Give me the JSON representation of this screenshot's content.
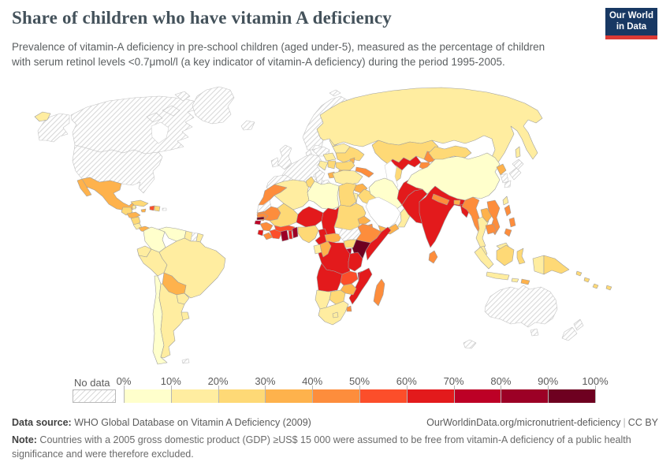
{
  "header": {
    "title": "Share of children who have vitamin A deficiency",
    "subtitle": "Prevalence of vitamin-A deficiency in pre-school children (aged under-5), measured as the percentage of children with serum retinol levels <0.7μmol/l (a key indicator of vitamin-A deficiency) during the period 1995-2005.",
    "logo_line1": "Our World",
    "logo_line2": "in Data",
    "logo_bg": "#183863",
    "logo_stripe": "#dc3a35"
  },
  "legend": {
    "no_data_label": "No data",
    "ticks": [
      "0%",
      "10%",
      "20%",
      "30%",
      "40%",
      "50%",
      "60%",
      "70%",
      "80%",
      "90%",
      "100%"
    ]
  },
  "footer": {
    "source_label": "Data source:",
    "source_text": " WHO Global Database on Vitamin A Deficiency (2009)",
    "link_text": "OurWorldinData.org/micronutrient-deficiency",
    "cc_text": "CC BY",
    "note_label": "Note:",
    "note_text": " Countries with a 2005 gross domestic product (GDP) ≥US$ 15 000 were assumed to be free from vitamin-A deficiency of a public health significance and were therefore excluded."
  },
  "chart_data": {
    "type": "choropleth",
    "title": "Share of children who have vitamin A deficiency",
    "unit": "% of children under 5 with serum retinol <0.7μmol/l",
    "period": "1995-2005",
    "legend_position": "bottom",
    "color_scale": {
      "bins": [
        "0-10%",
        "10-20%",
        "20-30%",
        "30-40%",
        "40-50%",
        "50-60%",
        "60-70%",
        "70-80%",
        "80-90%",
        "90-100%"
      ],
      "colors": [
        "#ffffcc",
        "#ffeda0",
        "#fed976",
        "#feb24c",
        "#fd8d3c",
        "#fc4e2a",
        "#e31a1c",
        "#bd0026",
        "#9c0026",
        "#6e0020"
      ],
      "no_data_fill": "hatched",
      "excluded_fill": "#ffffff"
    },
    "countries": {
      "Canada": "No data",
      "United States": "No data",
      "Greenland": "No data",
      "Arctic Islands": "No data",
      "Mexico": "30-40%",
      "Guatemala": "20-30%",
      "Belize": "10-20%",
      "Honduras": "30-40%",
      "Nicaragua": "20-30%",
      "Costa Rica": "10-20%",
      "Panama": "30-40%",
      "Cuba": "20-30%",
      "Jamaica": "30-40%",
      "Haiti": "50-60%",
      "Dominican Republic": "20-30%",
      "Puerto Rico": "No data",
      "Colombia": "0-10%",
      "Venezuela": "0-10%",
      "Guyana": "10-20%",
      "Suriname": "No data",
      "French Guiana": "10-20%",
      "Ecuador": "10-20%",
      "Peru": "10-20%",
      "Brazil": "10-20%",
      "Bolivia": "30-40%",
      "Paraguay": "10-20%",
      "Chile": "0-10%",
      "Argentina": "10-20%",
      "Uruguay": "10-20%",
      "Falkland Islands": "No data",
      "Iceland": "No data",
      "United Kingdom": "No data",
      "Ireland": "No data",
      "Scandinavia": "No data",
      "Denmark": "No data",
      "Western & Central Europe": "No data",
      "Iberia": "No data",
      "Italy": "No data",
      "Poland & Czechia": "No data",
      "Greece": "No data",
      "Croatia & Bosnia": "10-20%",
      "Baltic States": "10-20%",
      "Belarus": "10-20%",
      "Ukraine": "20-30%",
      "Moldova": "30-40%",
      "Romania": "20-30%",
      "Bulgaria": "30-40%",
      "Hungary & Slovakia": "10-20%",
      "Serbia": "20-30%",
      "Albania & Macedonia": "30-40%",
      "Svalbard": "No data",
      "Russia": "10-20%",
      "Kazakhstan": "20-30%",
      "Uzbekistan": "60-70%",
      "Turkmenistan": "20-30%",
      "Kyrgyzstan": "40-50%",
      "Tajikistan": "40-50%",
      "Caucasus": "40-50%",
      "Turkey": "10-20%",
      "Syria": "30-40%",
      "Iraq": "20-30%",
      "Jordan": "10-20%",
      "Iran": "0-10%",
      "Saudi Arabia": "Excluded",
      "Yemen": "30-40%",
      "Oman": "10-20%",
      "Afghanistan": "60-70%",
      "Pakistan": "60-70%",
      "India": "60-70%",
      "Nepal": "40-50%",
      "Bhutan": "30-40%",
      "Bangladesh": "60-70%",
      "Sri Lanka": "40-50%",
      "Myanmar": "40-50%",
      "Thailand": "10-20%",
      "Laos": "30-40%",
      "Vietnam": "40-50%",
      "Cambodia": "40-50%",
      "Malaysia": "10-20%",
      "China": "0-10%",
      "Mongolia": "20-30%",
      "North Korea": "30-40%",
      "South Korea": "No data",
      "Japan": "No data",
      "Taiwan": "10-20%",
      "Philippines": "40-50%",
      "Indonesia": "10-20%",
      "Indonesian Borneo": "20-30%",
      "Sulawesi": "20-30%",
      "Timor": "30-40%",
      "West Papua": "10-20%",
      "Papua New Guinea": "20-30%",
      "Solomon Islands": "20-30%",
      "Vanuatu": "20-30%",
      "Fiji": "20-30%",
      "Australia": "No data",
      "New Zealand": "No data",
      "Kerguelen": "No data",
      "Morocco": "40-50%",
      "Western Sahara": "No data",
      "Algeria": "10-20%",
      "Tunisia": "20-30%",
      "Libya": "0-10%",
      "Egypt": "20-30%",
      "Mauritania": "40-50%",
      "Mali": "20-30%",
      "Niger": "60-70%",
      "Chad": "60-70%",
      "Sudan": "20-30%",
      "Eritrea": "30-40%",
      "Djibouti": "40-50%",
      "Senegal": "40-50%",
      "Gambia": "90-100%",
      "Guinea-Bissau": "70-80%",
      "Guinea": "40-50%",
      "Sierra Leone": "60-70%",
      "Liberia": "40-50%",
      "Cote d'Ivoire": "50-60%",
      "Ghana": "80-90%",
      "Togo": "60-70%",
      "Benin": "80-90%",
      "Burkina Faso": "50-60%",
      "Nigeria": "20-30%",
      "Cameroon": "60-70%",
      "Central African Republic": "30-40%",
      "South Sudan": "No data",
      "Ethiopia": "40-50%",
      "Somalia": "60-70%",
      "Kenya": "90-100%",
      "Uganda": "20-30%",
      "Rwanda & Burundi": "70-80%",
      "DR Congo": "60-70%",
      "Gabon": "10-20%",
      "Congo": "30-40%",
      "Tanzania": "60-70%",
      "Angola": "60-70%",
      "Zambia": "50-60%",
      "Malawi": "70-80%",
      "Mozambique": "60-70%",
      "Zimbabwe": "30-40%",
      "Botswana": "20-30%",
      "Namibia": "10-20%",
      "South Africa": "10-20%",
      "Swaziland": "40-50%",
      "Lesotho": "10-20%",
      "Madagascar": "40-50%"
    }
  }
}
